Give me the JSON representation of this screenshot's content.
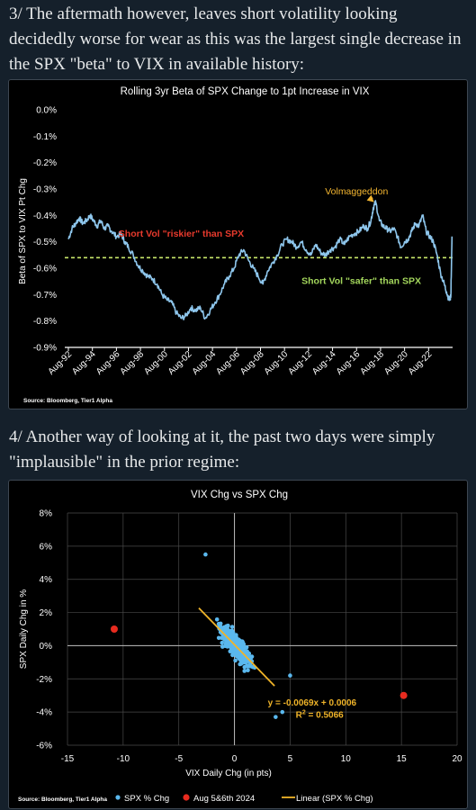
{
  "post": {
    "para1": "3/ The aftermath however, leaves short volatility looking decidedly worse for wear as this was the largest single decrease in the SPX \"beta\" to VIX in available history:",
    "para2": "4/ Another way of looking at it, the past two days were simply \"implausible\" in the prior regime:"
  },
  "colors": {
    "background": "#15202b",
    "chart_bg": "#000000",
    "line_blue": "#8ec6ec",
    "threshold_green": "#c8e66a",
    "riskier_red": "#e83a2d",
    "safer_green": "#a3d65c",
    "annotation_orange": "#f5b731",
    "scatter_blue": "#5ab8ee",
    "outlier_red": "#e82b1f",
    "trend_orange": "#f0b429"
  },
  "chart_data": [
    {
      "type": "line",
      "title": "Rolling 3yr Beta of SPX Change to 1pt Increase in VIX",
      "ylabel": "Beta of SPX to VIX Pt Chg",
      "xlabel": "",
      "ylim": [
        -0.9,
        0.0
      ],
      "yticks": [
        "0.0%",
        "-0.1%",
        "-0.2%",
        "-0.3%",
        "-0.4%",
        "-0.5%",
        "-0.6%",
        "-0.7%",
        "-0.8%",
        "-0.9%"
      ],
      "xticks": [
        "Aug-92",
        "Aug-94",
        "Aug-96",
        "Aug-98",
        "Aug-00",
        "Aug-02",
        "Aug-04",
        "Aug-06",
        "Aug-08",
        "Aug-10",
        "Aug-12",
        "Aug-14",
        "Aug-16",
        "Aug-18",
        "Aug-20",
        "Aug-22"
      ],
      "xlim": [
        1992.3,
        2024.6
      ],
      "threshold": -0.56,
      "grid": false,
      "series": [
        {
          "x": [
            1992.6,
            1992.9,
            1993.2,
            1993.5,
            1993.8,
            1994.1,
            1994.4,
            1994.7,
            1995.0,
            1995.3,
            1995.6,
            1995.9,
            1996.2,
            1996.6,
            1997.0,
            1997.3,
            1997.6,
            1998.0,
            1998.4,
            1998.8,
            1999.2,
            1999.6,
            2000.0,
            2000.4,
            2000.8,
            2001.2,
            2001.6,
            2002.0,
            2002.4,
            2002.8,
            2003.2,
            2003.6,
            2004.0,
            2004.4,
            2004.8,
            2005.2,
            2005.6,
            2006.0,
            2006.4,
            2006.8,
            2007.2,
            2007.6,
            2008.0,
            2008.4,
            2008.8,
            2009.2,
            2009.6,
            2010.0,
            2010.4,
            2010.8,
            2011.2,
            2011.6,
            2012.0,
            2012.4,
            2012.8,
            2013.2,
            2013.6,
            2014.0,
            2014.4,
            2014.8,
            2015.2,
            2015.6,
            2016.0,
            2016.4,
            2016.8,
            2017.2,
            2017.5,
            2017.8,
            2018.0,
            2018.2,
            2018.5,
            2018.8,
            2019.1,
            2019.4,
            2019.7,
            2020.0,
            2020.3,
            2020.6,
            2020.9,
            2021.2,
            2021.5,
            2021.8,
            2022.1,
            2022.4,
            2022.7,
            2023.0,
            2023.3,
            2023.6,
            2023.9,
            2024.1,
            2024.3,
            2024.45,
            2024.55
          ],
          "y": [
            -0.49,
            -0.45,
            -0.43,
            -0.41,
            -0.43,
            -0.42,
            -0.4,
            -0.42,
            -0.44,
            -0.42,
            -0.45,
            -0.44,
            -0.46,
            -0.48,
            -0.47,
            -0.5,
            -0.52,
            -0.55,
            -0.59,
            -0.61,
            -0.63,
            -0.64,
            -0.66,
            -0.7,
            -0.72,
            -0.73,
            -0.77,
            -0.79,
            -0.78,
            -0.75,
            -0.76,
            -0.75,
            -0.79,
            -0.76,
            -0.73,
            -0.7,
            -0.66,
            -0.63,
            -0.6,
            -0.55,
            -0.53,
            -0.57,
            -0.6,
            -0.63,
            -0.66,
            -0.61,
            -0.58,
            -0.55,
            -0.51,
            -0.49,
            -0.5,
            -0.52,
            -0.5,
            -0.53,
            -0.55,
            -0.51,
            -0.54,
            -0.55,
            -0.53,
            -0.52,
            -0.49,
            -0.51,
            -0.48,
            -0.47,
            -0.46,
            -0.44,
            -0.45,
            -0.42,
            -0.37,
            -0.35,
            -0.42,
            -0.44,
            -0.45,
            -0.46,
            -0.45,
            -0.48,
            -0.52,
            -0.5,
            -0.49,
            -0.46,
            -0.43,
            -0.44,
            -0.4,
            -0.46,
            -0.48,
            -0.5,
            -0.55,
            -0.62,
            -0.66,
            -0.69,
            -0.72,
            -0.71,
            -0.48
          ]
        }
      ],
      "annotations": [
        {
          "text": "Volmaggeddon",
          "x": 2016.6,
          "y": -0.32
        },
        {
          "text": "Short Vol \"riskier\" than SPX",
          "x": 2002.0,
          "y": -0.48
        },
        {
          "text": "Short Vol \"safer\" than SPX",
          "x": 2017.0,
          "y": -0.66
        }
      ],
      "source": "Source: Bloomberg, Tier1 Alpha"
    },
    {
      "type": "scatter",
      "title": "VIX Chg vs SPX Chg",
      "xlabel": "VIX Daily Chg (in pts)",
      "ylabel": "SPX Daily Chg in %",
      "xlim": [
        -15,
        20
      ],
      "ylim": [
        -6,
        8
      ],
      "xticks": [
        "-15",
        "-10",
        "-5",
        "0",
        "5",
        "10",
        "15",
        "20"
      ],
      "yticks": [
        "8%",
        "6%",
        "4%",
        "2%",
        "0%",
        "-2%",
        "-4%",
        "-6%"
      ],
      "grid": true,
      "series": [
        {
          "name": "SPX % Chg",
          "type": "cloud",
          "slope": -0.69,
          "intercept": 0.06,
          "count": 520,
          "xspread": [
            -3.2,
            4.2
          ]
        },
        {
          "name": "Aug 5&6th 2024",
          "points": [
            [
              -10.8,
              1.0
            ],
            [
              15.2,
              -3.0
            ]
          ]
        },
        {
          "name": "Linear (SPX % Chg)",
          "slope": -0.69,
          "intercept": 0.06,
          "xrange": [
            -3.2,
            3.6
          ]
        }
      ],
      "extra_points": [
        [
          -2.6,
          5.5
        ],
        [
          5.0,
          -1.8
        ],
        [
          4.3,
          -4.0
        ],
        [
          3.7,
          -4.3
        ]
      ],
      "equation": "y = -0.0069x + 0.0006",
      "r2_label": "R",
      "r2_exp": "2",
      "r2_value": " = 0.5066",
      "legend_position": "bottom",
      "source": "Source: Bloomberg, Tier1 Alpha"
    }
  ]
}
